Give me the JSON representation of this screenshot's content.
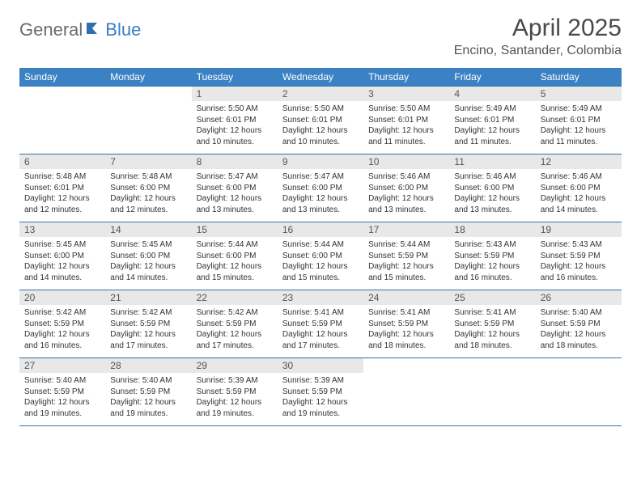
{
  "brand": {
    "part1": "General",
    "part2": "Blue"
  },
  "title": "April 2025",
  "location": "Encino, Santander, Colombia",
  "colors": {
    "header_bg": "#3b82c4",
    "header_text": "#ffffff",
    "daynum_bg": "#e8e8e8",
    "rule": "#3b6fa0",
    "logo_gray": "#6b6b6b",
    "logo_blue": "#3b7fc4"
  },
  "fonts": {
    "title_size": 30,
    "location_size": 16,
    "dow_size": 12,
    "daynum_size": 12,
    "detail_size": 10
  },
  "days_of_week": [
    "Sunday",
    "Monday",
    "Tuesday",
    "Wednesday",
    "Thursday",
    "Friday",
    "Saturday"
  ],
  "weeks": [
    {
      "nums": [
        "",
        "",
        "1",
        "2",
        "3",
        "4",
        "5"
      ],
      "cells": [
        null,
        null,
        {
          "sunrise": "Sunrise: 5:50 AM",
          "sunset": "Sunset: 6:01 PM",
          "day1": "Daylight: 12 hours",
          "day2": "and 10 minutes."
        },
        {
          "sunrise": "Sunrise: 5:50 AM",
          "sunset": "Sunset: 6:01 PM",
          "day1": "Daylight: 12 hours",
          "day2": "and 10 minutes."
        },
        {
          "sunrise": "Sunrise: 5:50 AM",
          "sunset": "Sunset: 6:01 PM",
          "day1": "Daylight: 12 hours",
          "day2": "and 11 minutes."
        },
        {
          "sunrise": "Sunrise: 5:49 AM",
          "sunset": "Sunset: 6:01 PM",
          "day1": "Daylight: 12 hours",
          "day2": "and 11 minutes."
        },
        {
          "sunrise": "Sunrise: 5:49 AM",
          "sunset": "Sunset: 6:01 PM",
          "day1": "Daylight: 12 hours",
          "day2": "and 11 minutes."
        }
      ]
    },
    {
      "nums": [
        "6",
        "7",
        "8",
        "9",
        "10",
        "11",
        "12"
      ],
      "cells": [
        {
          "sunrise": "Sunrise: 5:48 AM",
          "sunset": "Sunset: 6:01 PM",
          "day1": "Daylight: 12 hours",
          "day2": "and 12 minutes."
        },
        {
          "sunrise": "Sunrise: 5:48 AM",
          "sunset": "Sunset: 6:00 PM",
          "day1": "Daylight: 12 hours",
          "day2": "and 12 minutes."
        },
        {
          "sunrise": "Sunrise: 5:47 AM",
          "sunset": "Sunset: 6:00 PM",
          "day1": "Daylight: 12 hours",
          "day2": "and 13 minutes."
        },
        {
          "sunrise": "Sunrise: 5:47 AM",
          "sunset": "Sunset: 6:00 PM",
          "day1": "Daylight: 12 hours",
          "day2": "and 13 minutes."
        },
        {
          "sunrise": "Sunrise: 5:46 AM",
          "sunset": "Sunset: 6:00 PM",
          "day1": "Daylight: 12 hours",
          "day2": "and 13 minutes."
        },
        {
          "sunrise": "Sunrise: 5:46 AM",
          "sunset": "Sunset: 6:00 PM",
          "day1": "Daylight: 12 hours",
          "day2": "and 13 minutes."
        },
        {
          "sunrise": "Sunrise: 5:46 AM",
          "sunset": "Sunset: 6:00 PM",
          "day1": "Daylight: 12 hours",
          "day2": "and 14 minutes."
        }
      ]
    },
    {
      "nums": [
        "13",
        "14",
        "15",
        "16",
        "17",
        "18",
        "19"
      ],
      "cells": [
        {
          "sunrise": "Sunrise: 5:45 AM",
          "sunset": "Sunset: 6:00 PM",
          "day1": "Daylight: 12 hours",
          "day2": "and 14 minutes."
        },
        {
          "sunrise": "Sunrise: 5:45 AM",
          "sunset": "Sunset: 6:00 PM",
          "day1": "Daylight: 12 hours",
          "day2": "and 14 minutes."
        },
        {
          "sunrise": "Sunrise: 5:44 AM",
          "sunset": "Sunset: 6:00 PM",
          "day1": "Daylight: 12 hours",
          "day2": "and 15 minutes."
        },
        {
          "sunrise": "Sunrise: 5:44 AM",
          "sunset": "Sunset: 6:00 PM",
          "day1": "Daylight: 12 hours",
          "day2": "and 15 minutes."
        },
        {
          "sunrise": "Sunrise: 5:44 AM",
          "sunset": "Sunset: 5:59 PM",
          "day1": "Daylight: 12 hours",
          "day2": "and 15 minutes."
        },
        {
          "sunrise": "Sunrise: 5:43 AM",
          "sunset": "Sunset: 5:59 PM",
          "day1": "Daylight: 12 hours",
          "day2": "and 16 minutes."
        },
        {
          "sunrise": "Sunrise: 5:43 AM",
          "sunset": "Sunset: 5:59 PM",
          "day1": "Daylight: 12 hours",
          "day2": "and 16 minutes."
        }
      ]
    },
    {
      "nums": [
        "20",
        "21",
        "22",
        "23",
        "24",
        "25",
        "26"
      ],
      "cells": [
        {
          "sunrise": "Sunrise: 5:42 AM",
          "sunset": "Sunset: 5:59 PM",
          "day1": "Daylight: 12 hours",
          "day2": "and 16 minutes."
        },
        {
          "sunrise": "Sunrise: 5:42 AM",
          "sunset": "Sunset: 5:59 PM",
          "day1": "Daylight: 12 hours",
          "day2": "and 17 minutes."
        },
        {
          "sunrise": "Sunrise: 5:42 AM",
          "sunset": "Sunset: 5:59 PM",
          "day1": "Daylight: 12 hours",
          "day2": "and 17 minutes."
        },
        {
          "sunrise": "Sunrise: 5:41 AM",
          "sunset": "Sunset: 5:59 PM",
          "day1": "Daylight: 12 hours",
          "day2": "and 17 minutes."
        },
        {
          "sunrise": "Sunrise: 5:41 AM",
          "sunset": "Sunset: 5:59 PM",
          "day1": "Daylight: 12 hours",
          "day2": "and 18 minutes."
        },
        {
          "sunrise": "Sunrise: 5:41 AM",
          "sunset": "Sunset: 5:59 PM",
          "day1": "Daylight: 12 hours",
          "day2": "and 18 minutes."
        },
        {
          "sunrise": "Sunrise: 5:40 AM",
          "sunset": "Sunset: 5:59 PM",
          "day1": "Daylight: 12 hours",
          "day2": "and 18 minutes."
        }
      ]
    },
    {
      "nums": [
        "27",
        "28",
        "29",
        "30",
        "",
        "",
        ""
      ],
      "cells": [
        {
          "sunrise": "Sunrise: 5:40 AM",
          "sunset": "Sunset: 5:59 PM",
          "day1": "Daylight: 12 hours",
          "day2": "and 19 minutes."
        },
        {
          "sunrise": "Sunrise: 5:40 AM",
          "sunset": "Sunset: 5:59 PM",
          "day1": "Daylight: 12 hours",
          "day2": "and 19 minutes."
        },
        {
          "sunrise": "Sunrise: 5:39 AM",
          "sunset": "Sunset: 5:59 PM",
          "day1": "Daylight: 12 hours",
          "day2": "and 19 minutes."
        },
        {
          "sunrise": "Sunrise: 5:39 AM",
          "sunset": "Sunset: 5:59 PM",
          "day1": "Daylight: 12 hours",
          "day2": "and 19 minutes."
        },
        null,
        null,
        null
      ]
    }
  ]
}
